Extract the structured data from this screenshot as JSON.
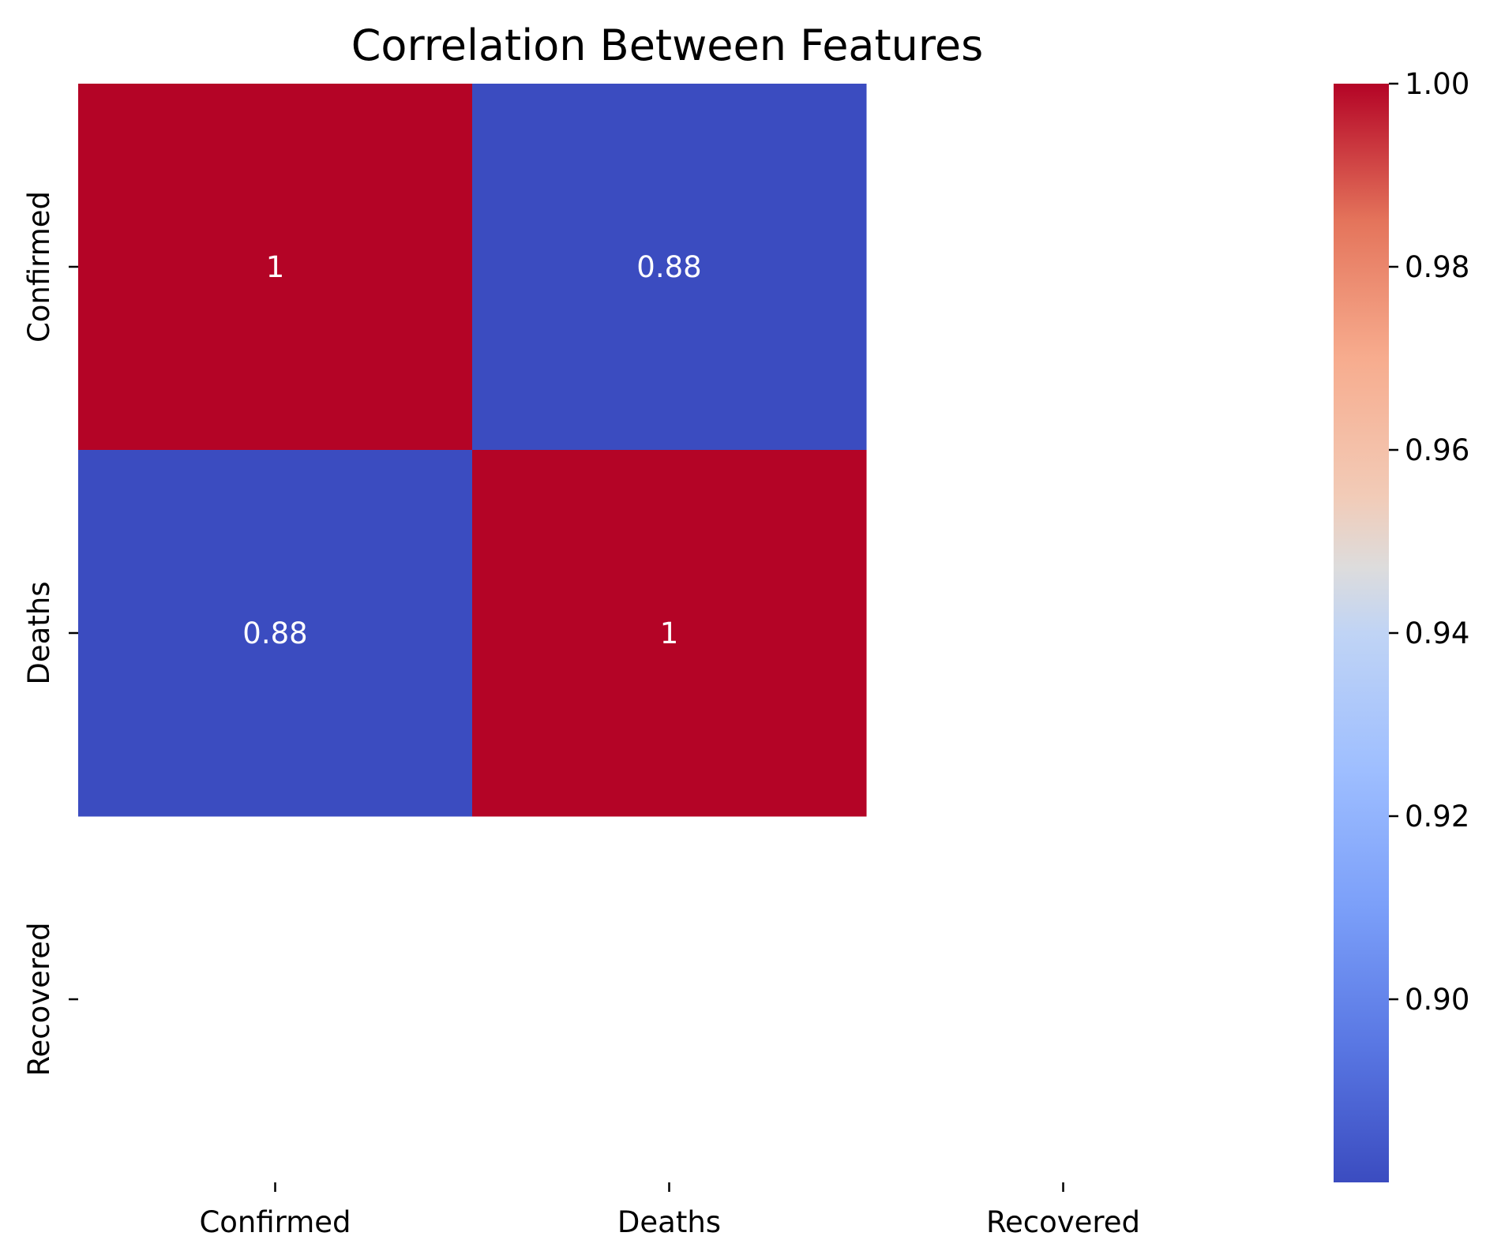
{
  "chart_data": {
    "type": "heatmap",
    "title": "Correlation Between Features",
    "xlabel": "",
    "ylabel": "",
    "x_categories": [
      "Confirmed",
      "Deaths",
      "Recovered"
    ],
    "y_categories": [
      "Confirmed",
      "Deaths",
      "Recovered"
    ],
    "values": [
      [
        1.0,
        0.88,
        null
      ],
      [
        0.88,
        1.0,
        null
      ],
      [
        null,
        null,
        null
      ]
    ],
    "annotations": [
      [
        "1",
        "0.88",
        ""
      ],
      [
        "0.88",
        "1",
        ""
      ],
      [
        "",
        "",
        ""
      ]
    ],
    "colormap": "coolwarm",
    "colorbar": {
      "vmin": 0.88,
      "vmax": 1.0,
      "ticks": [
        0.9,
        0.92,
        0.94,
        0.96,
        0.98,
        1.0
      ],
      "tick_labels": [
        "0.90",
        "0.92",
        "0.94",
        "0.96",
        "0.98",
        "1.00"
      ]
    },
    "colors": {
      "low": "#3b4cc0",
      "high": "#b40426",
      "missing": "#ffffff"
    },
    "grid": false,
    "legend": "colorbar-right"
  }
}
